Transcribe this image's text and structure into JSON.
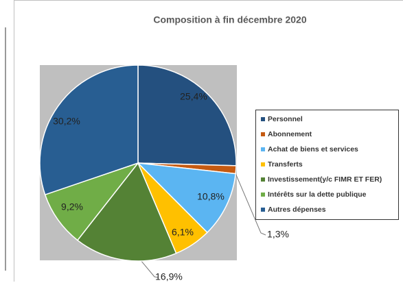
{
  "chart_data": {
    "type": "pie",
    "title": "Composition  à fin décembre 2020",
    "categories": [
      "Personnel",
      "Abonnement",
      "Achat de biens et services",
      "Transferts",
      "Investissement(y/c FIMR ET FER)",
      "Intérêts sur la dette publique",
      "Autres dépenses"
    ],
    "values": [
      25.4,
      1.3,
      10.8,
      6.1,
      16.9,
      9.2,
      30.2
    ],
    "value_labels": [
      "25,4%",
      "1,3%",
      "10,8%",
      "6,1%",
      "16,9%",
      "9,2%",
      "30,2%"
    ],
    "colors": [
      "#24507f",
      "#c55a11",
      "#5bb5f2",
      "#ffc000",
      "#548235",
      "#70ad47",
      "#285e92"
    ],
    "legend": "right"
  }
}
